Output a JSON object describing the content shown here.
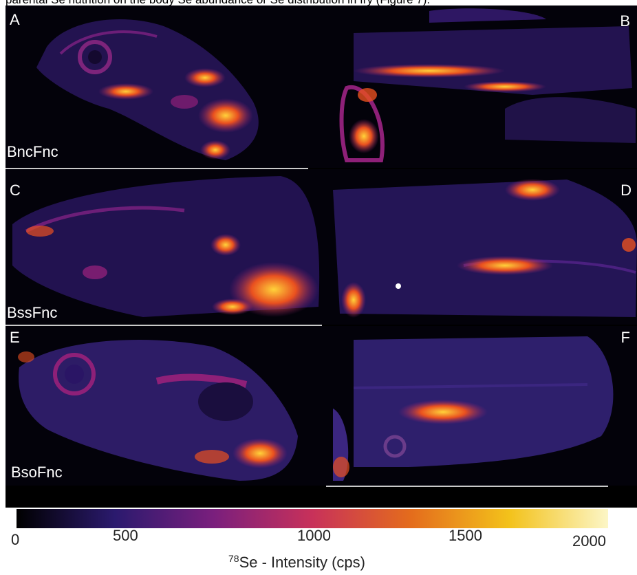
{
  "caption_fragment": "parental Se nutrition on the body Se abundance or Se distribution in fry (Figure 7).",
  "panels": {
    "A": "A",
    "B": "B",
    "C": "C",
    "D": "D",
    "E": "E",
    "F": "F"
  },
  "samples": {
    "row1": "BncFnc",
    "row2": "BssFnc",
    "row3": "BsoFnc"
  },
  "colorbar": {
    "ticks": [
      "0",
      "500",
      "1000",
      "1500",
      "2000"
    ],
    "title_sup": "78",
    "title_rest": "Se - Intensity (cps)",
    "stops": [
      "#000000",
      "#2b1a6e",
      "#7a1f7d",
      "#c8315a",
      "#e46c1c",
      "#f3c21b",
      "#fcf6c6"
    ]
  },
  "colors": {
    "background": "#000000",
    "low": "#2a1565",
    "mid": "#8e2078",
    "high": "#e9501f",
    "peak": "#ffd23a"
  }
}
